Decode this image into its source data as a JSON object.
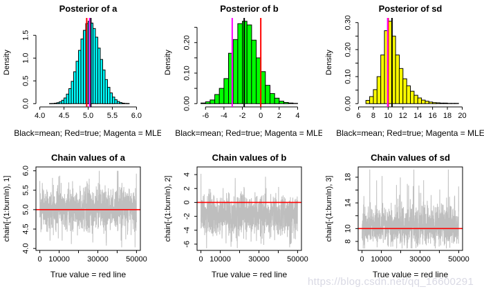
{
  "page": {
    "background": "#ffffff"
  },
  "watermark": {
    "text": "https://blog.csdn.net/qq_16600291",
    "color": "#d9d9e4"
  },
  "legend_colors": {
    "mean": "#000000",
    "true": "#ff0000",
    "mle": "#ff00ff",
    "trace": "#bebebe"
  },
  "chart_data": [
    {
      "kind": "hist",
      "type": "bar",
      "subtype": "histogram",
      "title": "Posterior of a",
      "ylabel": "Density",
      "caption": "Black=mean; Red=true; Magenta = MLE",
      "fill": "#00ffff",
      "xlim": [
        3.92,
        6.08
      ],
      "ylim": [
        -0.072,
        1.882
      ],
      "x_ticks": [
        4.0,
        4.5,
        5.0,
        5.5,
        6.0
      ],
      "x_tick_labels": [
        "4.0",
        "4.5",
        "5.0",
        "5.5",
        "6.0"
      ],
      "y_ticks": [
        0,
        0.5,
        1.0,
        1.5
      ],
      "y_tick_labels": [
        "0.0",
        "0.5",
        "1.0",
        "1.5"
      ],
      "bins": {
        "start": 4.2,
        "width": 0.05,
        "heights": [
          0.002,
          0.004,
          0.01,
          0.022,
          0.04,
          0.075,
          0.125,
          0.21,
          0.33,
          0.49,
          0.7,
          0.93,
          1.17,
          1.42,
          1.61,
          1.76,
          1.81,
          1.77,
          1.65,
          1.46,
          1.22,
          0.97,
          0.74,
          0.53,
          0.36,
          0.235,
          0.145,
          0.085,
          0.047,
          0.025,
          0.012,
          0.006,
          0.003
        ]
      },
      "vlines": [
        {
          "x": 5.055,
          "color": "#000000",
          "name": "mean-line"
        },
        {
          "x": 4.97,
          "color": "#ff0000",
          "name": "true-line"
        },
        {
          "x": 5.03,
          "color": "#ff00ff",
          "name": "mle-line"
        }
      ]
    },
    {
      "kind": "hist",
      "type": "bar",
      "subtype": "histogram",
      "title": "Posterior of b",
      "ylabel": "Density",
      "caption": "Black=mean; Red=true; Magenta = MLE",
      "fill": "#00ff00",
      "xlim": [
        -6.92,
        4.42
      ],
      "ylim": [
        -0.0108,
        0.2808
      ],
      "x_ticks": [
        -6,
        -4,
        -2,
        0,
        2,
        4
      ],
      "x_tick_labels": [
        "-6",
        "-4",
        "-2",
        "0",
        "2",
        "4"
      ],
      "y_ticks": [
        0,
        0.05,
        0.1,
        0.15,
        0.2,
        0.25
      ],
      "y_tick_labels": [
        "0.00",
        "",
        "0.10",
        "",
        "0.20",
        ""
      ],
      "bins": {
        "start": -6.5,
        "width": 0.5,
        "heights": [
          0.002,
          0.006,
          0.012,
          0.03,
          0.05,
          0.082,
          0.165,
          0.21,
          0.262,
          0.27,
          0.258,
          0.208,
          0.15,
          0.105,
          0.06,
          0.033,
          0.018,
          0.008,
          0.004,
          0.002,
          0.001
        ]
      },
      "vlines": [
        {
          "x": -1.8,
          "color": "#000000",
          "name": "mean-line"
        },
        {
          "x": 0.0,
          "color": "#ff0000",
          "name": "true-line"
        },
        {
          "x": -3.1,
          "color": "#ff00ff",
          "name": "mle-line"
        }
      ]
    },
    {
      "kind": "hist",
      "type": "bar",
      "subtype": "histogram",
      "title": "Posterior of sd",
      "ylabel": "Density",
      "caption": "Black=mean; Red=true; Magenta = MLE",
      "fill": "#ffff00",
      "xlim": [
        5.95,
        20.05
      ],
      "ylim": [
        -0.0122,
        0.3172
      ],
      "x_ticks": [
        6,
        8,
        10,
        12,
        14,
        16,
        18,
        20
      ],
      "x_tick_labels": [
        "6",
        "8",
        "10",
        "12",
        "14",
        "16",
        "18",
        "20"
      ],
      "y_ticks": [
        0,
        0.05,
        0.1,
        0.15,
        0.2,
        0.25,
        0.3
      ],
      "y_tick_labels": [
        "0.00",
        "",
        "0.10",
        "",
        "0.20",
        "",
        "0.30"
      ],
      "bins": {
        "start": 7.0,
        "width": 0.5,
        "heights": [
          0.012,
          0.026,
          0.052,
          0.1,
          0.18,
          0.27,
          0.305,
          0.25,
          0.18,
          0.13,
          0.092,
          0.066,
          0.046,
          0.031,
          0.021,
          0.013,
          0.009,
          0.006,
          0.004,
          0.003,
          0.002,
          0.002,
          0.001,
          0.001,
          0.001
        ]
      },
      "vlines": [
        {
          "x": 10.52,
          "color": "#000000",
          "name": "mean-line"
        },
        {
          "x": 10.01,
          "color": "#ff0000",
          "name": "true-line"
        },
        {
          "x": 9.93,
          "color": "#ff00ff",
          "name": "mle-line"
        }
      ]
    },
    {
      "kind": "trace",
      "type": "line",
      "subtype": "mcmc-trace",
      "title": "Chain values of a",
      "ylabel": "chain[-(1:burnIn), 1]",
      "caption": "True value = red line",
      "line_color": "#bebebe",
      "xlim": [
        -2000,
        52000
      ],
      "ylim": [
        3.95,
        6.1
      ],
      "x_ticks": [
        0,
        10000,
        20000,
        30000,
        40000,
        50000
      ],
      "x_tick_labels": [
        "0",
        "10000",
        "",
        "30000",
        "",
        "50000"
      ],
      "y_ticks": [
        4.0,
        4.5,
        5.0,
        5.5,
        6.0
      ],
      "y_tick_labels": [
        "4.0",
        "4.5",
        "5.0",
        "5.5",
        "6.0"
      ],
      "red_line": 5.0,
      "series": {
        "n": 1200,
        "seed": 7,
        "dist": "normal",
        "mean": 5.02,
        "sd": 0.26,
        "mix_p": 0.05,
        "mix_scale": 1.8,
        "clip": [
          4.03,
          6.0
        ],
        "x_max": 50000
      }
    },
    {
      "kind": "trace",
      "type": "line",
      "subtype": "mcmc-trace",
      "title": "Chain values of b",
      "ylabel": "chain[-(1:burnIn), 2]",
      "caption": "True value = red line",
      "line_color": "#bebebe",
      "xlim": [
        -2000,
        52000
      ],
      "ylim": [
        -6.9,
        5.1
      ],
      "x_ticks": [
        0,
        10000,
        20000,
        30000,
        40000,
        50000
      ],
      "x_tick_labels": [
        "0",
        "10000",
        "",
        "30000",
        "",
        "50000"
      ],
      "y_ticks": [
        -6,
        -4,
        -2,
        0,
        2,
        4
      ],
      "y_tick_labels": [
        "-6",
        "-4",
        "-2",
        "0",
        "2",
        "4"
      ],
      "red_line": 0.0,
      "series": {
        "n": 1200,
        "seed": 13,
        "dist": "normal",
        "mean": -1.8,
        "sd": 1.45,
        "mix_p": 0.05,
        "mix_scale": 1.7,
        "clip": [
          -6.6,
          4.9
        ],
        "x_max": 50000
      }
    },
    {
      "kind": "trace",
      "type": "line",
      "subtype": "mcmc-trace",
      "title": "Chain values of sd",
      "ylabel": "chain[-(1:burnIn), 3]",
      "caption": "True value = red line",
      "line_color": "#bebebe",
      "xlim": [
        -2000,
        52000
      ],
      "ylim": [
        6.6,
        19.6
      ],
      "x_ticks": [
        0,
        10000,
        20000,
        30000,
        40000,
        50000
      ],
      "x_tick_labels": [
        "0",
        "10000",
        "",
        "30000",
        "",
        "50000"
      ],
      "y_ticks": [
        8,
        10,
        12,
        14,
        16,
        18
      ],
      "y_tick_labels": [
        "8",
        "10",
        "",
        "14",
        "",
        "18"
      ],
      "red_line": 10.0,
      "series": {
        "n": 1200,
        "seed": 21,
        "dist": "lognormal",
        "meanlog": 2.335,
        "sdlog": 0.145,
        "mix_p": 0.06,
        "mix_scale": 2.2,
        "clip": [
          6.9,
          19.2
        ],
        "x_max": 50000
      }
    }
  ]
}
